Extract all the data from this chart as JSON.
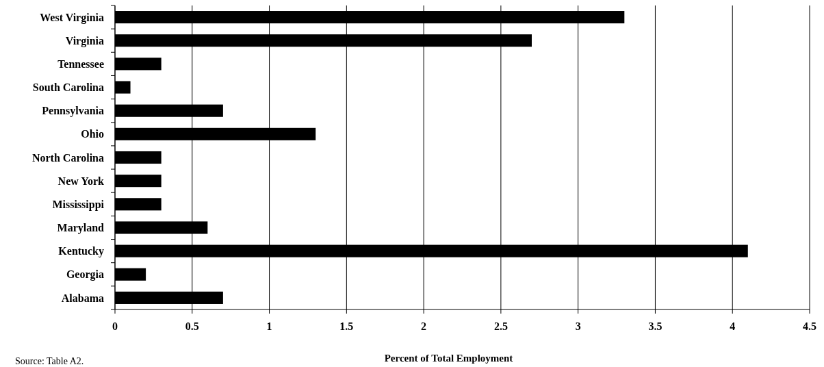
{
  "chart_data": {
    "type": "bar",
    "orientation": "horizontal",
    "categories": [
      "West Virginia",
      "Virginia",
      "Tennessee",
      "South Carolina",
      "Pennsylvania",
      "Ohio",
      "North Carolina",
      "New York",
      "Mississippi",
      "Maryland",
      "Kentucky",
      "Georgia",
      "Alabama"
    ],
    "values": [
      3.3,
      2.7,
      0.3,
      0.1,
      0.7,
      1.3,
      0.3,
      0.3,
      0.3,
      0.6,
      4.1,
      0.2,
      0.7
    ],
    "color": "#000000",
    "xlim": [
      0,
      4.5
    ],
    "xticks": [
      0,
      0.5,
      1,
      1.5,
      2,
      2.5,
      3,
      3.5,
      4,
      4.5
    ],
    "grid": "x",
    "xlabel": "Percent of Total Employment",
    "annotations": [
      "Source: Table A2."
    ]
  }
}
